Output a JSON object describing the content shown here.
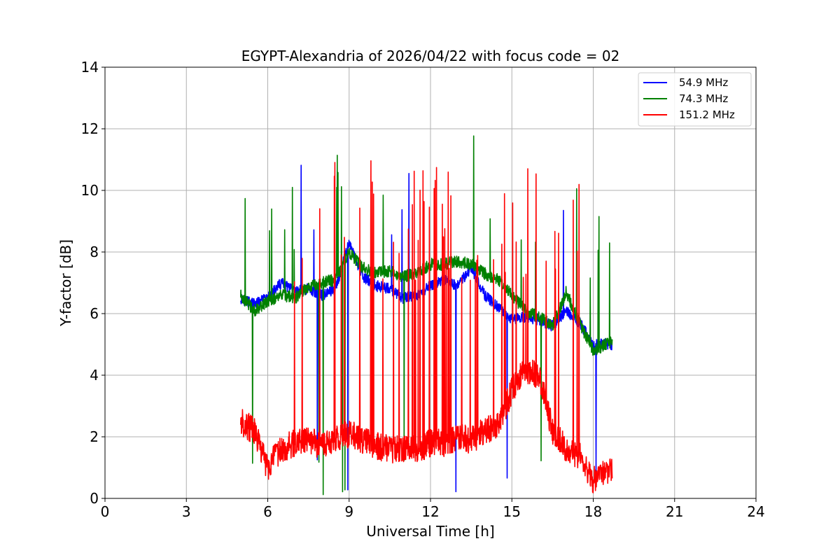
{
  "chart_data": {
    "type": "line",
    "title": "EGYPT-Alexandria of 2026/04/22 with focus code = 02",
    "xlabel": "Universal Time [h]",
    "ylabel": "Y-factor [dB]",
    "xlim": [
      0,
      24
    ],
    "ylim": [
      0,
      14
    ],
    "xticks": [
      0,
      3,
      6,
      9,
      12,
      15,
      18,
      21,
      24
    ],
    "yticks": [
      0,
      2,
      4,
      6,
      8,
      10,
      12,
      14
    ],
    "grid": true,
    "legend_position": "top-right",
    "series": [
      {
        "name": "54.9 MHz",
        "color": "#0000ff",
        "baseline": [
          [
            5.0,
            6.5
          ],
          [
            5.5,
            6.3
          ],
          [
            6.0,
            6.5
          ],
          [
            6.5,
            7.0
          ],
          [
            7.0,
            6.7
          ],
          [
            7.5,
            6.8
          ],
          [
            8.0,
            6.6
          ],
          [
            8.5,
            6.8
          ],
          [
            9.0,
            8.3
          ],
          [
            9.5,
            7.2
          ],
          [
            10.0,
            6.9
          ],
          [
            10.5,
            6.8
          ],
          [
            11.0,
            6.5
          ],
          [
            11.5,
            6.6
          ],
          [
            12.0,
            6.9
          ],
          [
            12.5,
            7.1
          ],
          [
            13.0,
            6.9
          ],
          [
            13.5,
            7.5
          ],
          [
            14.0,
            6.6
          ],
          [
            14.5,
            6.2
          ],
          [
            15.0,
            5.8
          ],
          [
            15.5,
            5.9
          ],
          [
            16.0,
            5.8
          ],
          [
            16.5,
            5.6
          ],
          [
            17.0,
            6.1
          ],
          [
            17.5,
            5.7
          ],
          [
            18.0,
            5.0
          ],
          [
            18.7,
            5.0
          ]
        ]
      },
      {
        "name": "74.3 MHz",
        "color": "#008000",
        "baseline": [
          [
            5.0,
            6.6
          ],
          [
            5.5,
            6.1
          ],
          [
            6.0,
            6.4
          ],
          [
            6.5,
            6.6
          ],
          [
            7.0,
            6.5
          ],
          [
            7.5,
            6.9
          ],
          [
            8.0,
            7.0
          ],
          [
            8.5,
            7.1
          ],
          [
            9.0,
            8.0
          ],
          [
            9.5,
            7.5
          ],
          [
            10.0,
            7.3
          ],
          [
            10.5,
            7.4
          ],
          [
            11.0,
            7.2
          ],
          [
            11.5,
            7.3
          ],
          [
            12.0,
            7.6
          ],
          [
            12.5,
            7.6
          ],
          [
            13.0,
            7.7
          ],
          [
            13.5,
            7.6
          ],
          [
            14.0,
            7.3
          ],
          [
            14.5,
            7.1
          ],
          [
            15.0,
            6.6
          ],
          [
            15.5,
            6.1
          ],
          [
            16.0,
            5.9
          ],
          [
            16.5,
            5.6
          ],
          [
            17.0,
            6.7
          ],
          [
            17.5,
            5.7
          ],
          [
            18.0,
            4.8
          ],
          [
            18.7,
            5.1
          ]
        ]
      },
      {
        "name": "151.2 MHz",
        "color": "#ff0000",
        "baseline": [
          [
            5.0,
            2.5
          ],
          [
            5.5,
            2.2
          ],
          [
            6.0,
            1.0
          ],
          [
            6.5,
            1.6
          ],
          [
            7.0,
            1.8
          ],
          [
            7.5,
            1.9
          ],
          [
            8.0,
            1.7
          ],
          [
            8.5,
            1.9
          ],
          [
            9.0,
            2.1
          ],
          [
            9.5,
            1.9
          ],
          [
            10.0,
            1.7
          ],
          [
            10.5,
            1.6
          ],
          [
            11.0,
            1.6
          ],
          [
            11.5,
            1.6
          ],
          [
            12.0,
            1.8
          ],
          [
            12.5,
            1.8
          ],
          [
            13.0,
            2.0
          ],
          [
            13.5,
            1.9
          ],
          [
            14.0,
            2.2
          ],
          [
            14.5,
            2.4
          ],
          [
            15.0,
            3.5
          ],
          [
            15.5,
            4.2
          ],
          [
            16.0,
            4.0
          ],
          [
            16.5,
            2.2
          ],
          [
            17.0,
            1.6
          ],
          [
            17.5,
            1.4
          ],
          [
            18.0,
            0.6
          ],
          [
            18.7,
            1.0
          ]
        ]
      }
    ]
  }
}
